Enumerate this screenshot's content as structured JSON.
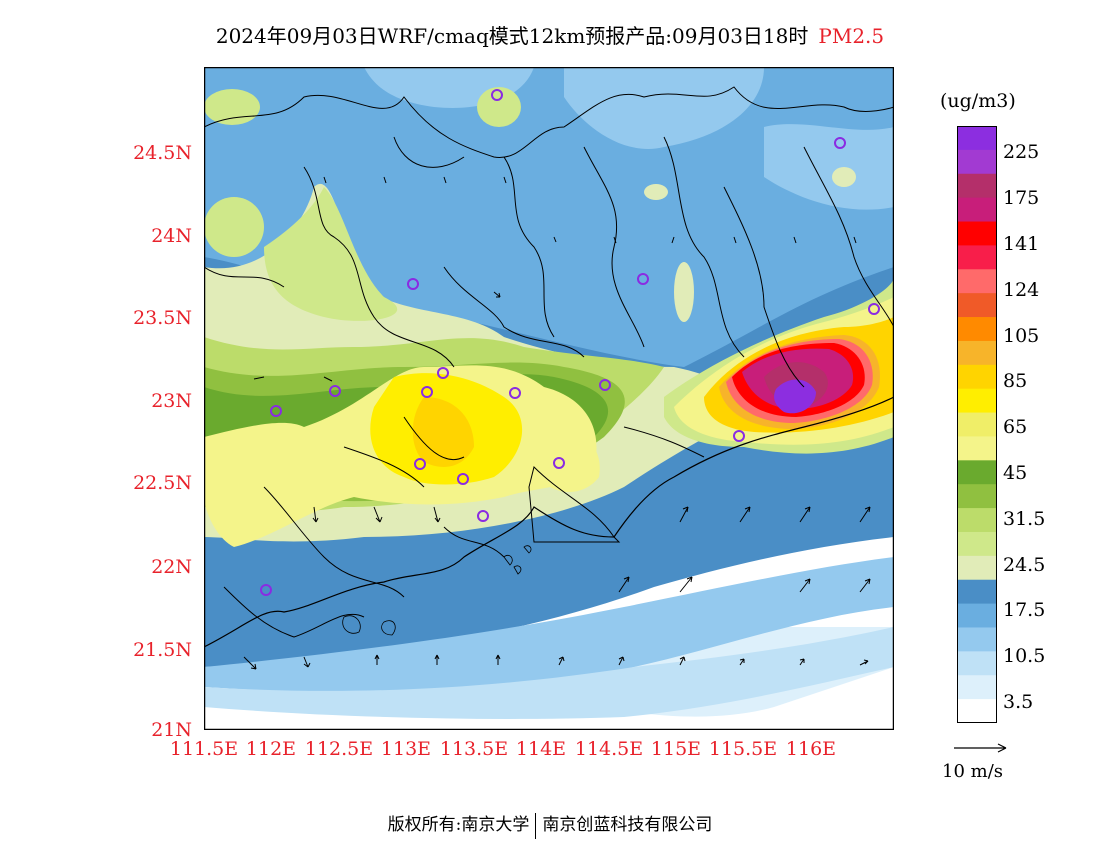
{
  "header": {
    "title": "2024年09月03日WRF/cmaq模式12km预报产品:09月03日18时",
    "pollutant": "PM2.5"
  },
  "axes": {
    "y_labels": [
      "24.5N",
      "24N",
      "23.5N",
      "23N",
      "22.5N",
      "22N",
      "21.5N",
      "21N"
    ],
    "x_labels": [
      "111.5E",
      "112E",
      "112.5E",
      "113E",
      "113.5E",
      "114E",
      "114.5E",
      "115E",
      "115.5E",
      "116E"
    ]
  },
  "colorbar": {
    "unit": "(ug/m3)",
    "labels": [
      "225",
      "175",
      "141",
      "124",
      "105",
      "85",
      "65",
      "45",
      "31.5",
      "24.5",
      "17.5",
      "10.5",
      "3.5"
    ],
    "colors": [
      "#8c2ee0",
      "#a23ad2",
      "#b42f6a",
      "#c81e7a",
      "#ff0000",
      "#f81e4a",
      "#ff6a6a",
      "#f05a28",
      "#ff8a00",
      "#f7b42a",
      "#ffd400",
      "#ffee00",
      "#f0ee68",
      "#f4f48a",
      "#6aaa2e",
      "#90c040",
      "#bcdc6a",
      "#cfe88a",
      "#e1ecb8",
      "#4a8ec6",
      "#6aaee0",
      "#94c9ee",
      "#bfe1f6",
      "#ddf0fb",
      "#ffffff"
    ]
  },
  "wind_reference": {
    "label": "10 m/s"
  },
  "footer": {
    "left": "版权所有:南京大学",
    "right": "南京创蓝科技有限公司"
  }
}
